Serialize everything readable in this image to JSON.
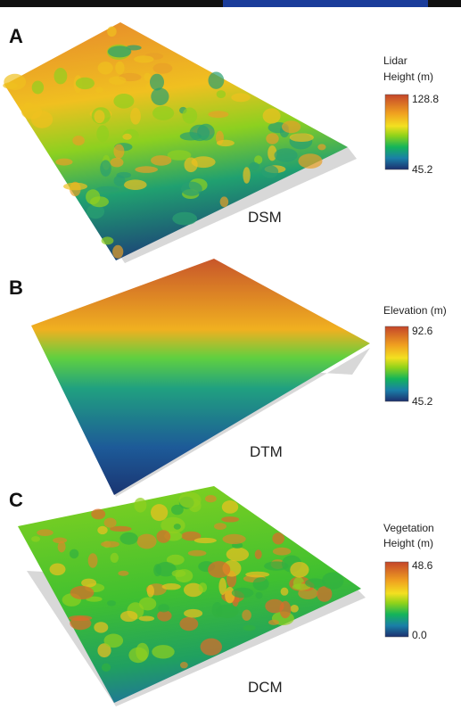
{
  "panels": [
    {
      "letter": "A",
      "name": "DSM",
      "legend_title": [
        "Lidar",
        "Height (m)"
      ],
      "max": "128.8",
      "min": "45.2"
    },
    {
      "letter": "B",
      "name": "DTM",
      "legend_title": [
        "Elevation (m)"
      ],
      "max": "92.6",
      "min": "45.2"
    },
    {
      "letter": "C",
      "name": "DCM",
      "legend_title": [
        "Vegetation",
        "Height (m)"
      ],
      "max": "48.6",
      "min": "0.0"
    }
  ]
}
